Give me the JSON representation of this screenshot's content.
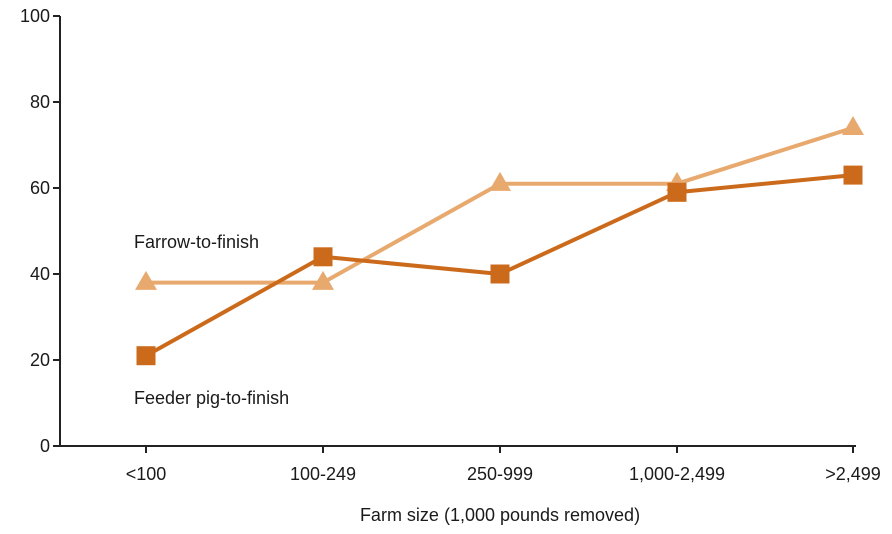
{
  "chart_data": {
    "type": "line",
    "title": "",
    "xlabel": "Farm size (1,000 pounds removed)",
    "ylabel": "",
    "categories": [
      "<100",
      "100-249",
      "250-999",
      "1,000-2,499",
      ">2,499"
    ],
    "ylim": [
      0,
      100
    ],
    "yticks": [
      0,
      20,
      40,
      60,
      80,
      100
    ],
    "grid": false,
    "legend": "none",
    "series": [
      {
        "name": "Farrow-to-finish",
        "values": [
          38,
          38,
          61,
          61,
          74
        ],
        "color": "#e8a96f",
        "marker": "triangle"
      },
      {
        "name": "Feeder pig-to-finish",
        "values": [
          21,
          44,
          40,
          59,
          63
        ],
        "color": "#cc6a1c",
        "marker": "square"
      }
    ]
  }
}
